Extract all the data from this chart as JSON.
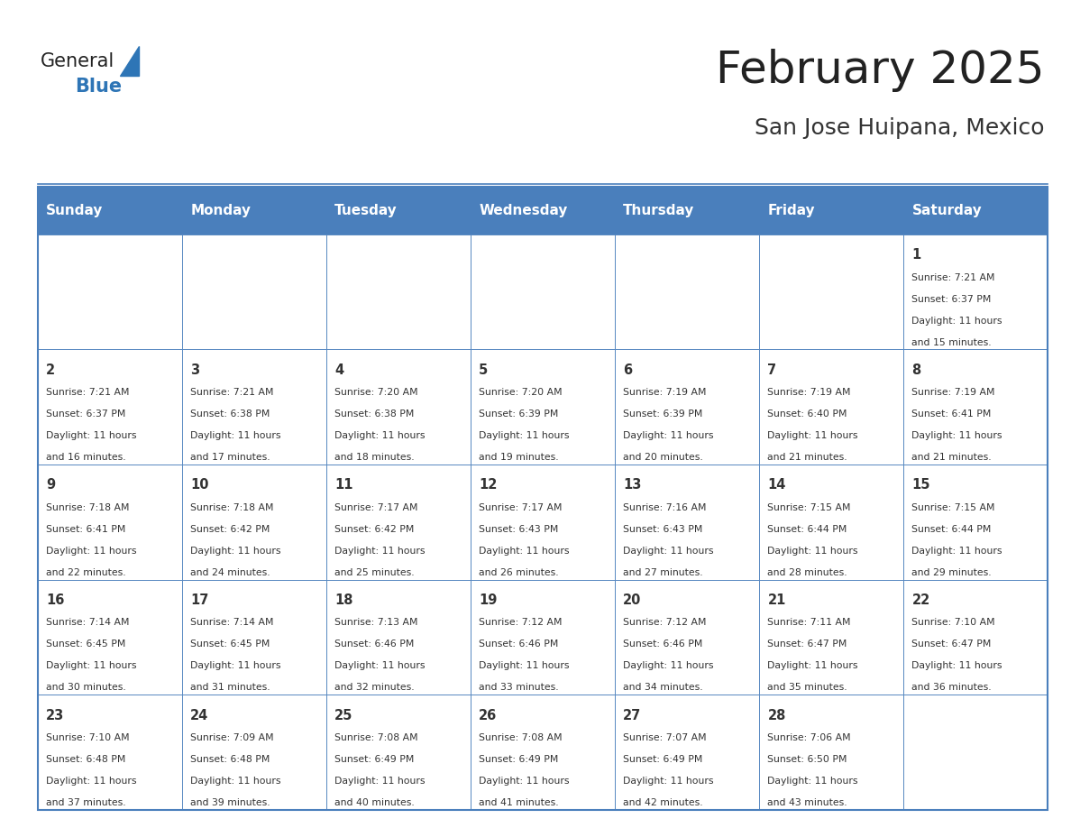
{
  "title": "February 2025",
  "subtitle": "San Jose Huipana, Mexico",
  "days_of_week": [
    "Sunday",
    "Monday",
    "Tuesday",
    "Wednesday",
    "Thursday",
    "Friday",
    "Saturday"
  ],
  "header_bg": "#4a7fbc",
  "header_text": "#ffffff",
  "border_color": "#4a7fbc",
  "day_number_color": "#333333",
  "info_text_color": "#333333",
  "title_color": "#222222",
  "subtitle_color": "#333333",
  "logo_general_color": "#222222",
  "logo_blue_color": "#2e75b6",
  "cell_bg_light": "#f5f5f5",
  "cell_bg_white": "#ffffff",
  "calendar_data": [
    {
      "day": 1,
      "col": 6,
      "row": 0,
      "sunrise": "7:21 AM",
      "sunset": "6:37 PM",
      "daylight_h": "11 hours",
      "daylight_m": "and 15 minutes."
    },
    {
      "day": 2,
      "col": 0,
      "row": 1,
      "sunrise": "7:21 AM",
      "sunset": "6:37 PM",
      "daylight_h": "11 hours",
      "daylight_m": "and 16 minutes."
    },
    {
      "day": 3,
      "col": 1,
      "row": 1,
      "sunrise": "7:21 AM",
      "sunset": "6:38 PM",
      "daylight_h": "11 hours",
      "daylight_m": "and 17 minutes."
    },
    {
      "day": 4,
      "col": 2,
      "row": 1,
      "sunrise": "7:20 AM",
      "sunset": "6:38 PM",
      "daylight_h": "11 hours",
      "daylight_m": "and 18 minutes."
    },
    {
      "day": 5,
      "col": 3,
      "row": 1,
      "sunrise": "7:20 AM",
      "sunset": "6:39 PM",
      "daylight_h": "11 hours",
      "daylight_m": "and 19 minutes."
    },
    {
      "day": 6,
      "col": 4,
      "row": 1,
      "sunrise": "7:19 AM",
      "sunset": "6:39 PM",
      "daylight_h": "11 hours",
      "daylight_m": "and 20 minutes."
    },
    {
      "day": 7,
      "col": 5,
      "row": 1,
      "sunrise": "7:19 AM",
      "sunset": "6:40 PM",
      "daylight_h": "11 hours",
      "daylight_m": "and 21 minutes."
    },
    {
      "day": 8,
      "col": 6,
      "row": 1,
      "sunrise": "7:19 AM",
      "sunset": "6:41 PM",
      "daylight_h": "11 hours",
      "daylight_m": "and 21 minutes."
    },
    {
      "day": 9,
      "col": 0,
      "row": 2,
      "sunrise": "7:18 AM",
      "sunset": "6:41 PM",
      "daylight_h": "11 hours",
      "daylight_m": "and 22 minutes."
    },
    {
      "day": 10,
      "col": 1,
      "row": 2,
      "sunrise": "7:18 AM",
      "sunset": "6:42 PM",
      "daylight_h": "11 hours",
      "daylight_m": "and 24 minutes."
    },
    {
      "day": 11,
      "col": 2,
      "row": 2,
      "sunrise": "7:17 AM",
      "sunset": "6:42 PM",
      "daylight_h": "11 hours",
      "daylight_m": "and 25 minutes."
    },
    {
      "day": 12,
      "col": 3,
      "row": 2,
      "sunrise": "7:17 AM",
      "sunset": "6:43 PM",
      "daylight_h": "11 hours",
      "daylight_m": "and 26 minutes."
    },
    {
      "day": 13,
      "col": 4,
      "row": 2,
      "sunrise": "7:16 AM",
      "sunset": "6:43 PM",
      "daylight_h": "11 hours",
      "daylight_m": "and 27 minutes."
    },
    {
      "day": 14,
      "col": 5,
      "row": 2,
      "sunrise": "7:15 AM",
      "sunset": "6:44 PM",
      "daylight_h": "11 hours",
      "daylight_m": "and 28 minutes."
    },
    {
      "day": 15,
      "col": 6,
      "row": 2,
      "sunrise": "7:15 AM",
      "sunset": "6:44 PM",
      "daylight_h": "11 hours",
      "daylight_m": "and 29 minutes."
    },
    {
      "day": 16,
      "col": 0,
      "row": 3,
      "sunrise": "7:14 AM",
      "sunset": "6:45 PM",
      "daylight_h": "11 hours",
      "daylight_m": "and 30 minutes."
    },
    {
      "day": 17,
      "col": 1,
      "row": 3,
      "sunrise": "7:14 AM",
      "sunset": "6:45 PM",
      "daylight_h": "11 hours",
      "daylight_m": "and 31 minutes."
    },
    {
      "day": 18,
      "col": 2,
      "row": 3,
      "sunrise": "7:13 AM",
      "sunset": "6:46 PM",
      "daylight_h": "11 hours",
      "daylight_m": "and 32 minutes."
    },
    {
      "day": 19,
      "col": 3,
      "row": 3,
      "sunrise": "7:12 AM",
      "sunset": "6:46 PM",
      "daylight_h": "11 hours",
      "daylight_m": "and 33 minutes."
    },
    {
      "day": 20,
      "col": 4,
      "row": 3,
      "sunrise": "7:12 AM",
      "sunset": "6:46 PM",
      "daylight_h": "11 hours",
      "daylight_m": "and 34 minutes."
    },
    {
      "day": 21,
      "col": 5,
      "row": 3,
      "sunrise": "7:11 AM",
      "sunset": "6:47 PM",
      "daylight_h": "11 hours",
      "daylight_m": "and 35 minutes."
    },
    {
      "day": 22,
      "col": 6,
      "row": 3,
      "sunrise": "7:10 AM",
      "sunset": "6:47 PM",
      "daylight_h": "11 hours",
      "daylight_m": "and 36 minutes."
    },
    {
      "day": 23,
      "col": 0,
      "row": 4,
      "sunrise": "7:10 AM",
      "sunset": "6:48 PM",
      "daylight_h": "11 hours",
      "daylight_m": "and 37 minutes."
    },
    {
      "day": 24,
      "col": 1,
      "row": 4,
      "sunrise": "7:09 AM",
      "sunset": "6:48 PM",
      "daylight_h": "11 hours",
      "daylight_m": "and 39 minutes."
    },
    {
      "day": 25,
      "col": 2,
      "row": 4,
      "sunrise": "7:08 AM",
      "sunset": "6:49 PM",
      "daylight_h": "11 hours",
      "daylight_m": "and 40 minutes."
    },
    {
      "day": 26,
      "col": 3,
      "row": 4,
      "sunrise": "7:08 AM",
      "sunset": "6:49 PM",
      "daylight_h": "11 hours",
      "daylight_m": "and 41 minutes."
    },
    {
      "day": 27,
      "col": 4,
      "row": 4,
      "sunrise": "7:07 AM",
      "sunset": "6:49 PM",
      "daylight_h": "11 hours",
      "daylight_m": "and 42 minutes."
    },
    {
      "day": 28,
      "col": 5,
      "row": 4,
      "sunrise": "7:06 AM",
      "sunset": "6:50 PM",
      "daylight_h": "11 hours",
      "daylight_m": "and 43 minutes."
    }
  ],
  "num_rows": 5,
  "figsize": [
    11.88,
    9.18
  ]
}
